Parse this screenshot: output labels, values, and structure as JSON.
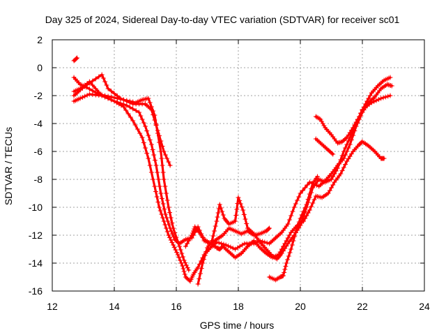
{
  "chart_data": {
    "type": "scatter",
    "title": "Day 325 of 2024, Sidereal Day-to-day VTEC variation (SDTVAR) for receiver sc01",
    "xlabel": "GPS time / hours",
    "ylabel": "SDTVAR / TECUs",
    "xlim": [
      12,
      24
    ],
    "ylim": [
      -16,
      2
    ],
    "xticks": [
      12,
      14,
      16,
      18,
      20,
      22,
      24
    ],
    "yticks": [
      2,
      0,
      -2,
      -4,
      -6,
      -8,
      -10,
      -12,
      -14,
      -16
    ],
    "grid": true,
    "marker": "+",
    "color": "#ff0000",
    "series": [
      {
        "name": "track-1",
        "points": [
          [
            12.7,
            -2.0
          ],
          [
            12.9,
            -1.6
          ],
          [
            13.2,
            -1.1
          ],
          [
            13.6,
            -0.5
          ],
          [
            13.8,
            -1.5
          ],
          [
            14.2,
            -2.2
          ],
          [
            14.6,
            -2.6
          ],
          [
            15.0,
            -2.6
          ],
          [
            15.2,
            -3.0
          ],
          [
            15.4,
            -4.5
          ],
          [
            15.6,
            -6.0
          ],
          [
            15.8,
            -7.0
          ]
        ]
      },
      {
        "name": "track-2",
        "points": [
          [
            12.7,
            -0.7
          ],
          [
            12.9,
            -1.2
          ],
          [
            13.1,
            -1.4
          ],
          [
            13.5,
            -1.9
          ],
          [
            13.9,
            -2.1
          ],
          [
            14.3,
            -2.3
          ],
          [
            14.7,
            -2.5
          ],
          [
            14.9,
            -2.3
          ],
          [
            15.1,
            -2.2
          ],
          [
            15.3,
            -3.4
          ],
          [
            15.5,
            -6.0
          ],
          [
            15.6,
            -8.0
          ],
          [
            15.75,
            -10.0
          ],
          [
            15.9,
            -11.5
          ],
          [
            16.1,
            -12.8
          ],
          [
            16.25,
            -13.8
          ],
          [
            16.4,
            -14.5
          ]
        ]
      },
      {
        "name": "track-3",
        "points": [
          [
            12.7,
            -1.7
          ],
          [
            12.9,
            -1.5
          ],
          [
            13.2,
            -1.0
          ],
          [
            13.6,
            -2.0
          ],
          [
            14.0,
            -2.4
          ],
          [
            14.4,
            -2.7
          ],
          [
            14.8,
            -3.2
          ],
          [
            15.0,
            -4.2
          ],
          [
            15.2,
            -5.5
          ],
          [
            15.35,
            -7.0
          ],
          [
            15.5,
            -9.0
          ],
          [
            15.65,
            -10.5
          ],
          [
            15.8,
            -11.5
          ],
          [
            15.95,
            -12.3
          ],
          [
            16.1,
            -12.6
          ],
          [
            16.3,
            -12.3
          ],
          [
            16.5,
            -12.2
          ],
          [
            16.7,
            -11.4
          ],
          [
            16.9,
            -12.4
          ],
          [
            17.1,
            -12.6
          ],
          [
            17.3,
            -12.3
          ],
          [
            17.5,
            -12.0
          ],
          [
            17.7,
            -11.5
          ],
          [
            17.9,
            -11.7
          ],
          [
            18.1,
            -11.9
          ],
          [
            18.3,
            -11.7
          ],
          [
            18.5,
            -12.0
          ],
          [
            18.7,
            -11.9
          ],
          [
            18.9,
            -11.7
          ],
          [
            19.0,
            -11.5
          ]
        ]
      },
      {
        "name": "track-4",
        "points": [
          [
            12.7,
            -2.4
          ],
          [
            12.9,
            -2.2
          ],
          [
            13.2,
            -1.9
          ],
          [
            13.6,
            -2.0
          ],
          [
            14.0,
            -2.4
          ],
          [
            14.3,
            -2.8
          ],
          [
            14.6,
            -3.8
          ],
          [
            14.9,
            -5.0
          ],
          [
            15.1,
            -6.5
          ],
          [
            15.3,
            -8.5
          ],
          [
            15.45,
            -10.0
          ],
          [
            15.6,
            -11.0
          ],
          [
            15.75,
            -12.0
          ],
          [
            15.9,
            -12.7
          ],
          [
            16.05,
            -13.4
          ],
          [
            16.2,
            -14.2
          ],
          [
            16.3,
            -15.0
          ],
          [
            16.45,
            -15.3
          ],
          [
            16.55,
            -14.8
          ],
          [
            16.7,
            -14.3
          ],
          [
            16.9,
            -13.4
          ],
          [
            17.1,
            -12.9
          ],
          [
            17.3,
            -12.5
          ],
          [
            17.6,
            -12.7
          ],
          [
            17.9,
            -13.0
          ],
          [
            18.2,
            -12.6
          ],
          [
            18.5,
            -12.6
          ],
          [
            18.7,
            -12.4
          ],
          [
            19.0,
            -12.6
          ],
          [
            19.2,
            -12.2
          ],
          [
            19.4,
            -11.8
          ],
          [
            19.6,
            -11.2
          ],
          [
            19.8,
            -10.0
          ],
          [
            20.0,
            -9.0
          ],
          [
            20.3,
            -8.2
          ],
          [
            20.6,
            -8.5
          ],
          [
            20.8,
            -8.1
          ],
          [
            21.0,
            -7.6
          ],
          [
            21.2,
            -7.0
          ],
          [
            21.4,
            -6.5
          ],
          [
            21.6,
            -5.5
          ],
          [
            21.8,
            -4.2
          ],
          [
            22.0,
            -3.2
          ],
          [
            22.2,
            -2.5
          ],
          [
            22.4,
            -2.1
          ],
          [
            22.6,
            -1.5
          ],
          [
            22.8,
            -1.2
          ],
          [
            22.95,
            -1.3
          ]
        ]
      },
      {
        "name": "track-5",
        "points": [
          [
            16.3,
            -12.8
          ],
          [
            16.5,
            -12.0
          ],
          [
            16.6,
            -11.4
          ],
          [
            16.75,
            -11.8
          ],
          [
            16.9,
            -12.3
          ],
          [
            17.1,
            -12.6
          ],
          [
            17.3,
            -12.9
          ],
          [
            17.4,
            -13.0
          ],
          [
            17.5,
            -12.8
          ],
          [
            17.7,
            -13.2
          ],
          [
            17.9,
            -13.6
          ],
          [
            18.1,
            -13.3
          ],
          [
            18.3,
            -12.8
          ],
          [
            18.5,
            -12.4
          ],
          [
            18.7,
            -12.9
          ],
          [
            18.9,
            -13.3
          ],
          [
            19.1,
            -13.6
          ],
          [
            19.3,
            -13.4
          ],
          [
            19.5,
            -12.6
          ],
          [
            19.7,
            -11.8
          ],
          [
            19.9,
            -11.3
          ],
          [
            20.1,
            -11.0
          ],
          [
            20.3,
            -10.2
          ],
          [
            20.5,
            -9.2
          ],
          [
            20.7,
            -9.3
          ],
          [
            20.9,
            -9.0
          ],
          [
            21.1,
            -8.2
          ],
          [
            21.3,
            -7.6
          ],
          [
            21.5,
            -6.7
          ],
          [
            21.7,
            -6.0
          ],
          [
            21.9,
            -5.5
          ],
          [
            22.0,
            -5.3
          ],
          [
            22.2,
            -5.6
          ],
          [
            22.4,
            -6.0
          ],
          [
            22.6,
            -6.5
          ],
          [
            22.7,
            -6.5
          ]
        ]
      },
      {
        "name": "track-6",
        "points": [
          [
            16.7,
            -15.5
          ],
          [
            16.85,
            -14.0
          ],
          [
            17.0,
            -12.9
          ],
          [
            17.15,
            -12.4
          ],
          [
            17.3,
            -11.0
          ],
          [
            17.4,
            -9.8
          ],
          [
            17.55,
            -10.8
          ],
          [
            17.7,
            -11.2
          ],
          [
            17.9,
            -11.0
          ],
          [
            18.0,
            -9.3
          ],
          [
            18.15,
            -10.2
          ],
          [
            18.3,
            -11.5
          ],
          [
            18.5,
            -11.9
          ],
          [
            18.7,
            -12.5
          ],
          [
            18.9,
            -13.0
          ],
          [
            19.1,
            -13.5
          ],
          [
            19.25,
            -13.7
          ],
          [
            19.4,
            -13.3
          ],
          [
            19.6,
            -12.6
          ],
          [
            19.8,
            -12.0
          ],
          [
            20.0,
            -11.3
          ],
          [
            20.2,
            -10.0
          ],
          [
            20.4,
            -8.6
          ],
          [
            20.6,
            -8.0
          ],
          [
            20.8,
            -8.2
          ],
          [
            21.0,
            -8.0
          ],
          [
            21.2,
            -7.2
          ],
          [
            21.4,
            -6.0
          ],
          [
            21.6,
            -5.0
          ],
          [
            21.8,
            -4.0
          ],
          [
            22.0,
            -3.0
          ],
          [
            22.3,
            -2.5
          ],
          [
            22.6,
            -2.2
          ],
          [
            22.9,
            -2.0
          ]
        ]
      },
      {
        "name": "track-7",
        "points": [
          [
            19.0,
            -15.0
          ],
          [
            19.2,
            -15.2
          ],
          [
            19.35,
            -15.0
          ],
          [
            19.45,
            -14.9
          ],
          [
            19.55,
            -14.0
          ],
          [
            19.7,
            -13.0
          ],
          [
            19.85,
            -11.8
          ],
          [
            20.0,
            -10.8
          ],
          [
            20.2,
            -9.8
          ],
          [
            20.4,
            -8.3
          ],
          [
            20.55,
            -7.8
          ]
        ]
      },
      {
        "name": "track-8",
        "points": [
          [
            20.5,
            -3.5
          ],
          [
            20.65,
            -3.7
          ],
          [
            20.8,
            -4.3
          ],
          [
            21.0,
            -4.8
          ],
          [
            21.2,
            -5.4
          ],
          [
            21.35,
            -5.3
          ],
          [
            21.5,
            -5.0
          ],
          [
            21.7,
            -4.3
          ],
          [
            21.9,
            -3.5
          ],
          [
            22.1,
            -2.6
          ],
          [
            22.3,
            -1.8
          ],
          [
            22.5,
            -1.3
          ],
          [
            22.7,
            -0.9
          ],
          [
            22.9,
            -0.7
          ]
        ]
      },
      {
        "name": "track-9",
        "points": [
          [
            20.5,
            -5.1
          ],
          [
            20.7,
            -5.5
          ],
          [
            20.9,
            -5.9
          ],
          [
            21.05,
            -6.2
          ]
        ]
      },
      {
        "name": "track-10",
        "points": [
          [
            12.7,
            0.5
          ],
          [
            12.8,
            0.7
          ]
        ]
      }
    ]
  }
}
